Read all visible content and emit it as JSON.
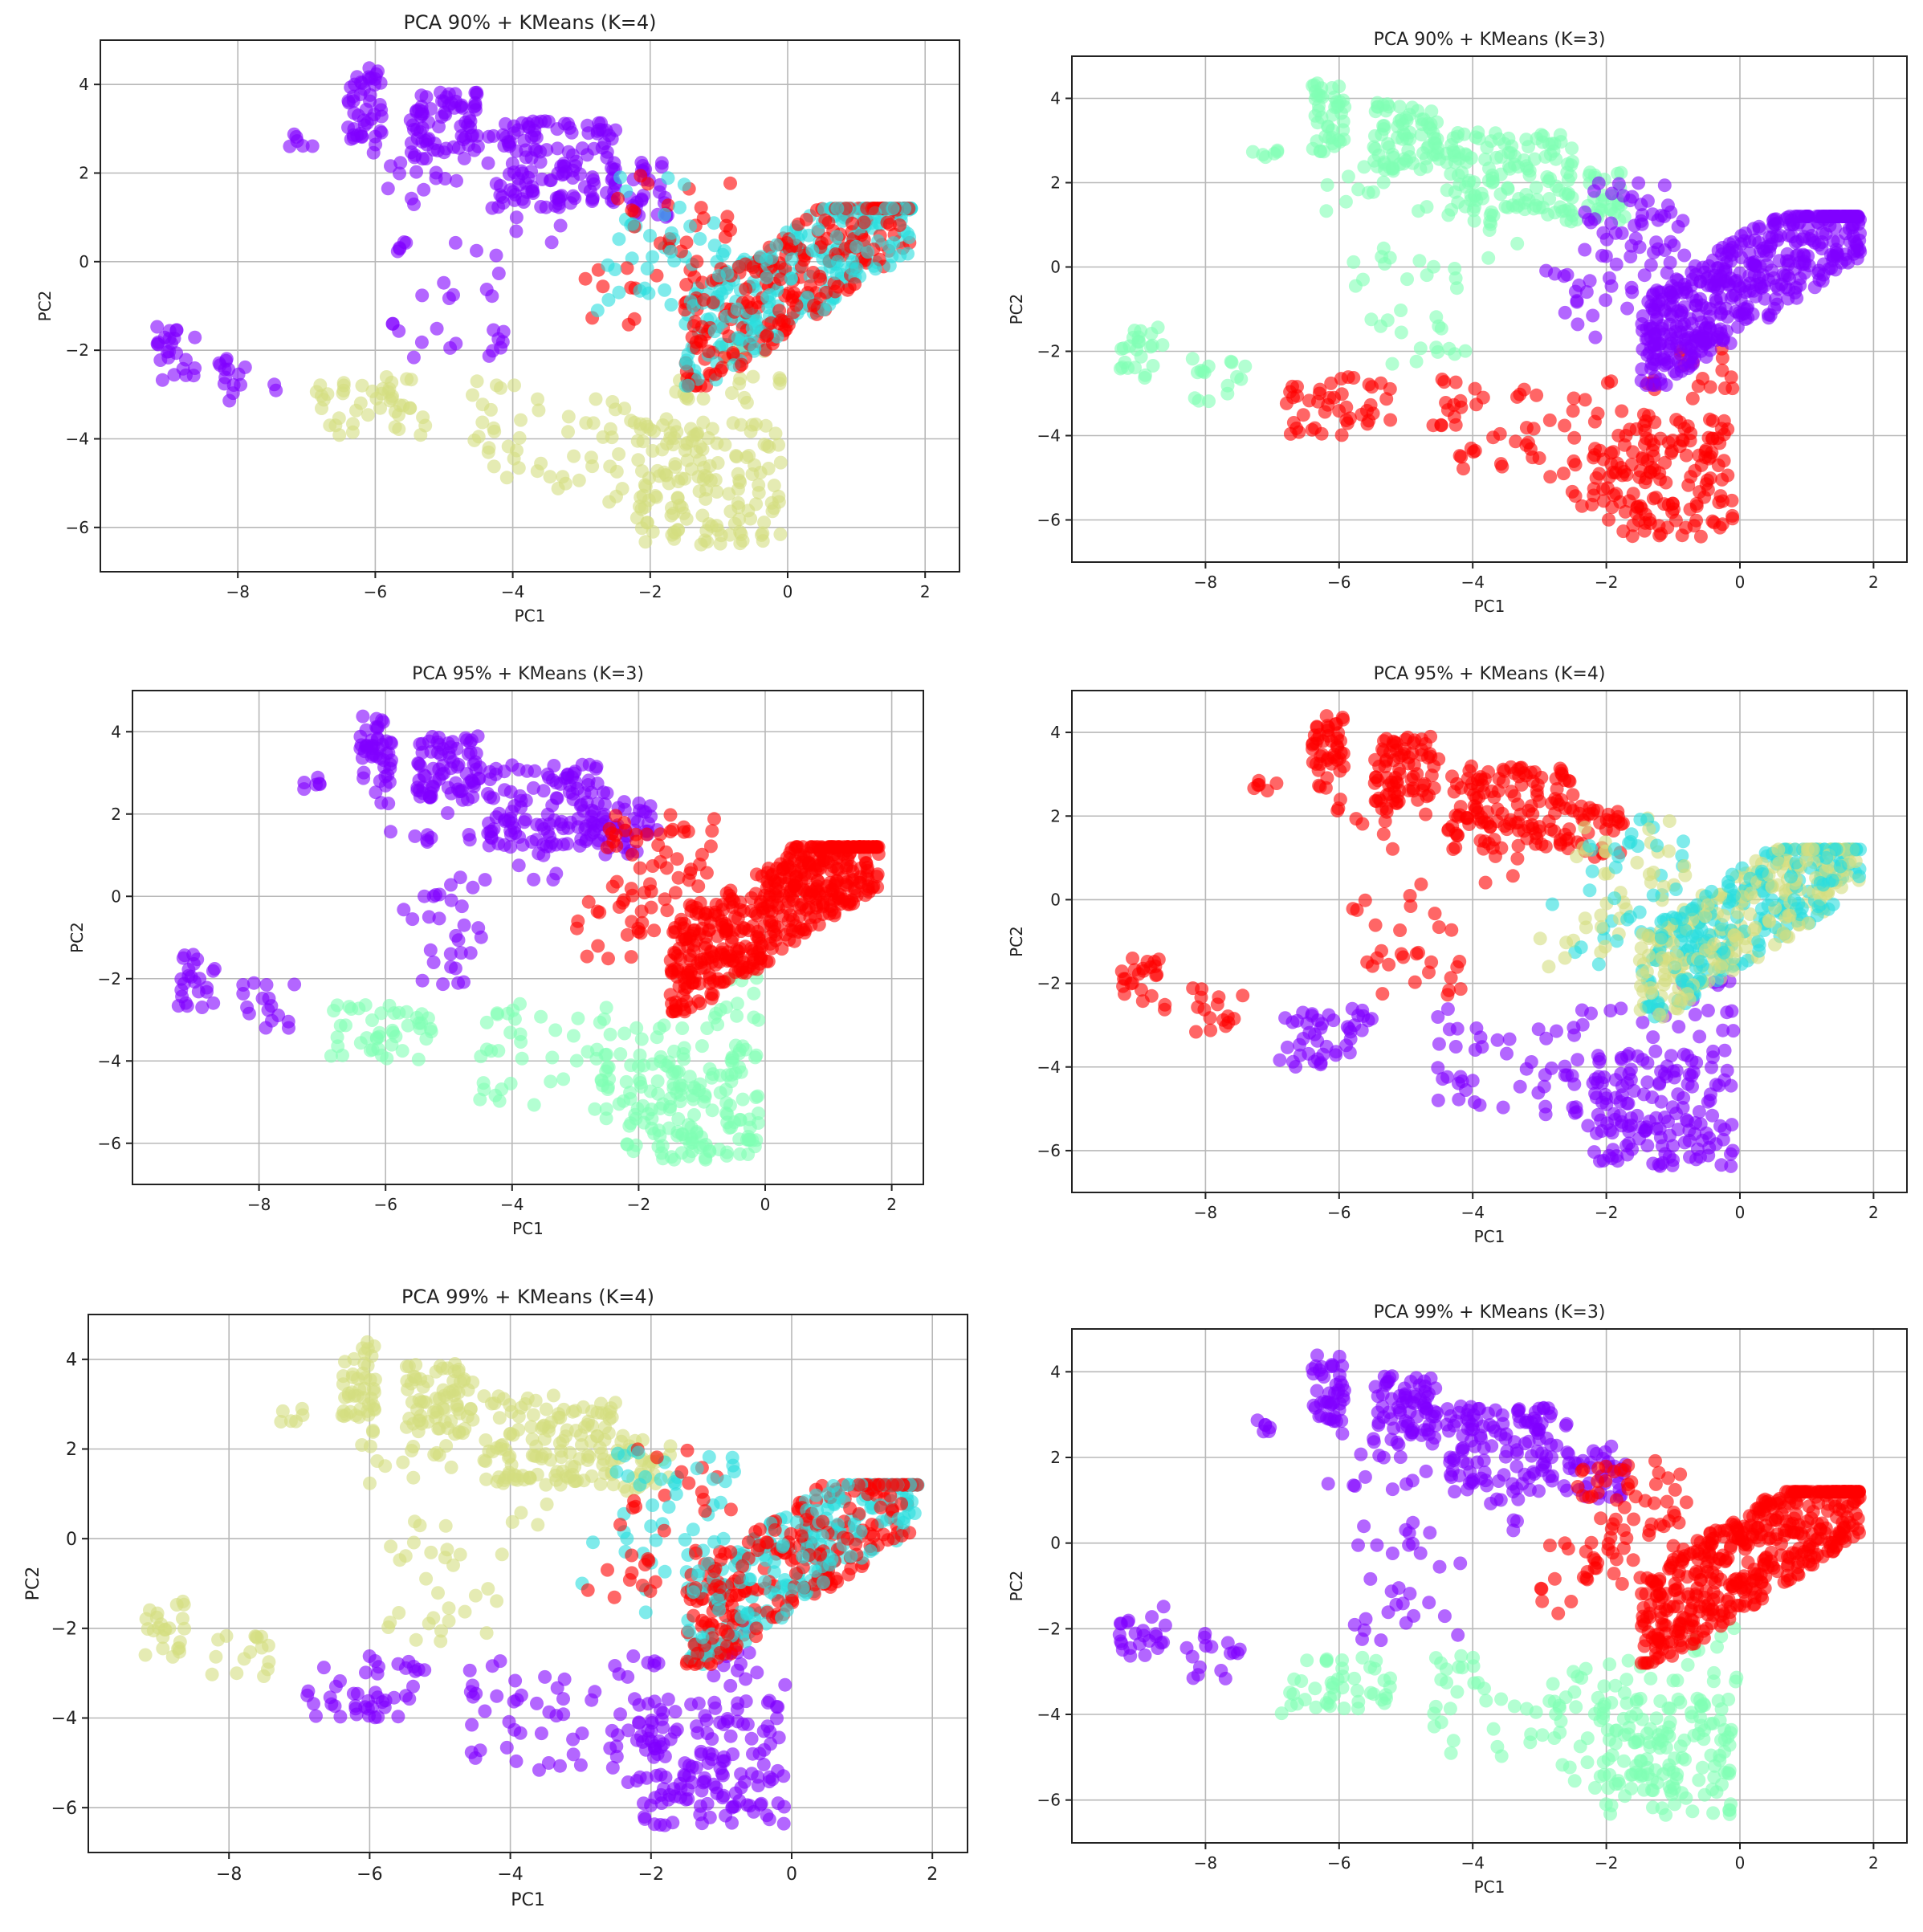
{
  "chart_data": [
    {
      "type": "scatter",
      "title": "PCA 90% + KMeans (K=4)",
      "xlabel": "PC1",
      "ylabel": "PC2",
      "xlim": [
        -10.0,
        2.5
      ],
      "ylim": [
        -7.0,
        5.0
      ],
      "xticks": [
        -8,
        -6,
        -4,
        -2,
        0,
        2
      ],
      "yticks": [
        -6,
        -4,
        -2,
        0,
        2,
        4
      ],
      "grid": true,
      "scheme": "k4a",
      "series": [
        {
          "cluster": 0,
          "color": "#8000ff"
        },
        {
          "cluster": 1,
          "color": "#2adddd"
        },
        {
          "cluster": 2,
          "color": "#d4dd80"
        },
        {
          "cluster": 3,
          "color": "#ff0000"
        }
      ]
    },
    {
      "type": "scatter",
      "title": "PCA 90% + KMeans (K=3)",
      "xlabel": "PC1",
      "ylabel": "PC2",
      "xlim": [
        -10.0,
        2.5
      ],
      "ylim": [
        -7.0,
        5.0
      ],
      "xticks": [
        -8,
        -6,
        -4,
        -2,
        0,
        2
      ],
      "yticks": [
        -6,
        -4,
        -2,
        0,
        2,
        4
      ],
      "grid": true,
      "scheme": "k3b",
      "series": [
        {
          "cluster": 0,
          "color": "#8000ff"
        },
        {
          "cluster": 1,
          "color": "#80ffb4"
        },
        {
          "cluster": 2,
          "color": "#ff0000"
        }
      ]
    },
    {
      "type": "scatter",
      "title": "PCA 95% + KMeans (K=3)",
      "xlabel": "PC1",
      "ylabel": "PC2",
      "xlim": [
        -10.0,
        2.5
      ],
      "ylim": [
        -7.0,
        5.0
      ],
      "xticks": [
        -8,
        -6,
        -4,
        -2,
        0,
        2
      ],
      "yticks": [
        -6,
        -4,
        -2,
        0,
        2,
        4
      ],
      "grid": true,
      "scheme": "k3a",
      "series": [
        {
          "cluster": 0,
          "color": "#8000ff"
        },
        {
          "cluster": 1,
          "color": "#80ffb4"
        },
        {
          "cluster": 2,
          "color": "#ff0000"
        }
      ]
    },
    {
      "type": "scatter",
      "title": "PCA 95% + KMeans (K=4)",
      "xlabel": "PC1",
      "ylabel": "PC2",
      "xlim": [
        -10.0,
        2.5
      ],
      "ylim": [
        -7.0,
        5.0
      ],
      "xticks": [
        -8,
        -6,
        -4,
        -2,
        0,
        2
      ],
      "yticks": [
        -6,
        -4,
        -2,
        0,
        2,
        4
      ],
      "grid": true,
      "scheme": "k4b",
      "series": [
        {
          "cluster": 0,
          "color": "#8000ff"
        },
        {
          "cluster": 1,
          "color": "#2adddd"
        },
        {
          "cluster": 2,
          "color": "#d4dd80"
        },
        {
          "cluster": 3,
          "color": "#ff0000"
        }
      ]
    },
    {
      "type": "scatter",
      "title": "PCA 99% + KMeans (K=4)",
      "xlabel": "PC1",
      "ylabel": "PC2",
      "xlim": [
        -10.0,
        2.5
      ],
      "ylim": [
        -7.0,
        5.0
      ],
      "xticks": [
        -8,
        -6,
        -4,
        -2,
        0,
        2
      ],
      "yticks": [
        -6,
        -4,
        -2,
        0,
        2,
        4
      ],
      "grid": true,
      "scheme": "k4c",
      "series": [
        {
          "cluster": 0,
          "color": "#8000ff"
        },
        {
          "cluster": 1,
          "color": "#2adddd"
        },
        {
          "cluster": 2,
          "color": "#d4dd80"
        },
        {
          "cluster": 3,
          "color": "#ff0000"
        }
      ]
    },
    {
      "type": "scatter",
      "title": "PCA 99% + KMeans (K=3)",
      "xlabel": "PC1",
      "ylabel": "PC2",
      "xlim": [
        -10.0,
        2.5
      ],
      "ylim": [
        -7.0,
        5.0
      ],
      "xticks": [
        -8,
        -6,
        -4,
        -2,
        0,
        2
      ],
      "yticks": [
        -6,
        -4,
        -2,
        0,
        2,
        4
      ],
      "grid": true,
      "scheme": "k3a",
      "series": [
        {
          "cluster": 0,
          "color": "#8000ff"
        },
        {
          "cluster": 1,
          "color": "#80ffb4"
        },
        {
          "cluster": 2,
          "color": "#ff0000"
        }
      ]
    }
  ],
  "point_groups": [
    {
      "group": "A",
      "x": [
        -6.4,
        -5.9
      ],
      "y": [
        2.7,
        4.4
      ],
      "n": 45
    },
    {
      "group": "A",
      "x": [
        -5.5,
        -4.5
      ],
      "y": [
        2.3,
        3.9
      ],
      "n": 75
    },
    {
      "group": "A",
      "x": [
        -7.3,
        -6.9
      ],
      "y": [
        2.6,
        2.9
      ],
      "n": 6
    },
    {
      "group": "A",
      "x": [
        -4.4,
        -2.5
      ],
      "y": [
        1.2,
        3.2
      ],
      "n": 130
    },
    {
      "group": "A",
      "x": [
        -2.6,
        -1.7
      ],
      "y": [
        1.0,
        2.3
      ],
      "n": 35
    },
    {
      "group": "A",
      "x": [
        -6.2,
        -4.6
      ],
      "y": [
        1.2,
        2.7
      ],
      "n": 16
    },
    {
      "group": "A",
      "x": [
        -5.8,
        -4.1
      ],
      "y": [
        -2.3,
        0.5
      ],
      "n": 30
    },
    {
      "group": "A",
      "x": [
        -4.0,
        -3.3
      ],
      "y": [
        0.2,
        1.5
      ],
      "n": 8
    },
    {
      "group": "B",
      "x": [
        -9.3,
        -8.6
      ],
      "y": [
        -2.7,
        -1.4
      ],
      "n": 24
    },
    {
      "group": "B",
      "x": [
        -8.3,
        -7.4
      ],
      "y": [
        -3.2,
        -2.1
      ],
      "n": 16
    },
    {
      "group": "C",
      "x": [
        -6.9,
        -5.2
      ],
      "y": [
        -4.0,
        -2.6
      ],
      "n": 45
    },
    {
      "group": "C",
      "x": [
        -4.6,
        -3.8
      ],
      "y": [
        -5.0,
        -2.6
      ],
      "n": 22
    },
    {
      "group": "C",
      "x": [
        -3.7,
        -2.4
      ],
      "y": [
        -5.2,
        -2.9
      ],
      "n": 22
    },
    {
      "group": "C",
      "x": [
        -2.6,
        -1.1
      ],
      "y": [
        -5.8,
        -2.6
      ],
      "n": 35
    },
    {
      "group": "C",
      "x": [
        -2.2,
        -0.1
      ],
      "y": [
        -6.4,
        -3.6
      ],
      "n": 140
    },
    {
      "group": "C",
      "x": [
        -1.0,
        0.0
      ],
      "y": [
        -3.3,
        -1.9
      ],
      "n": 14
    },
    {
      "group": "D",
      "x": [
        -2.5,
        -0.8
      ],
      "y": [
        -1.0,
        2.0
      ],
      "n": 70
    },
    {
      "group": "D",
      "x": [
        -3.0,
        -2.0
      ],
      "y": [
        -1.7,
        0.0
      ],
      "n": 12
    },
    {
      "group": "E",
      "x": [
        -1.5,
        1.8
      ],
      "y": [
        -2.8,
        1.2
      ],
      "n": 480
    }
  ]
}
